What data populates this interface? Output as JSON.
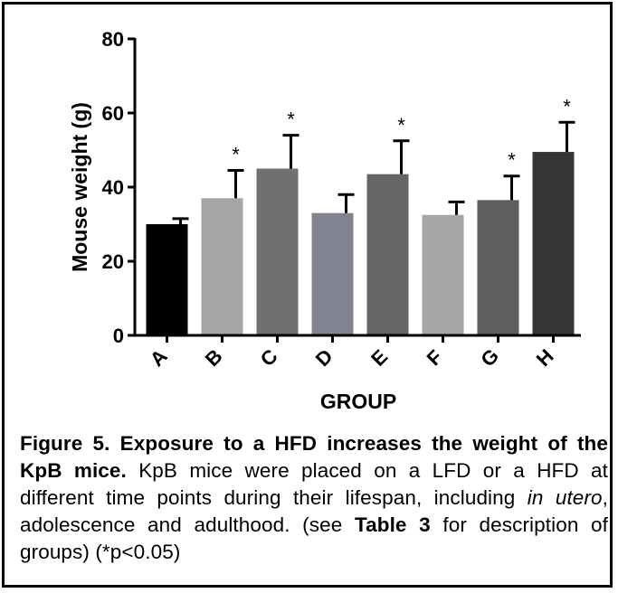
{
  "chart_data": {
    "type": "bar",
    "xlabel": "GROUP",
    "ylabel": "Mouse weight (g)",
    "ylim": [
      0,
      80
    ],
    "yticks": [
      0,
      20,
      40,
      60,
      80
    ],
    "categories": [
      "A",
      "B",
      "C",
      "D",
      "E",
      "F",
      "G",
      "H"
    ],
    "values": [
      30,
      37,
      45,
      33,
      43.5,
      32.5,
      36.5,
      49.5
    ],
    "errors": [
      1.5,
      7.5,
      9,
      5,
      9,
      3.5,
      6.5,
      8
    ],
    "significant": [
      false,
      true,
      true,
      false,
      true,
      false,
      true,
      true
    ],
    "significance_marker": "*",
    "bar_colors": [
      "#000000",
      "#a6a6a6",
      "#707070",
      "#818391",
      "#656565",
      "#a6a6a6",
      "#5e5e5e",
      "#363636"
    ],
    "grid": false
  },
  "caption": {
    "title": "Figure 5. Exposure to a HFD increases the weight of the KpB mice.",
    "line1_start": "KpB mice were placed on a LFD or a HFD at different time points during their lifespan, including",
    "italic": "in utero",
    "line1_end": ", adolescence and adulthood. (see",
    "table_ref": "Table 3",
    "line2_end": "for description of groups) (*p<0.05)"
  }
}
